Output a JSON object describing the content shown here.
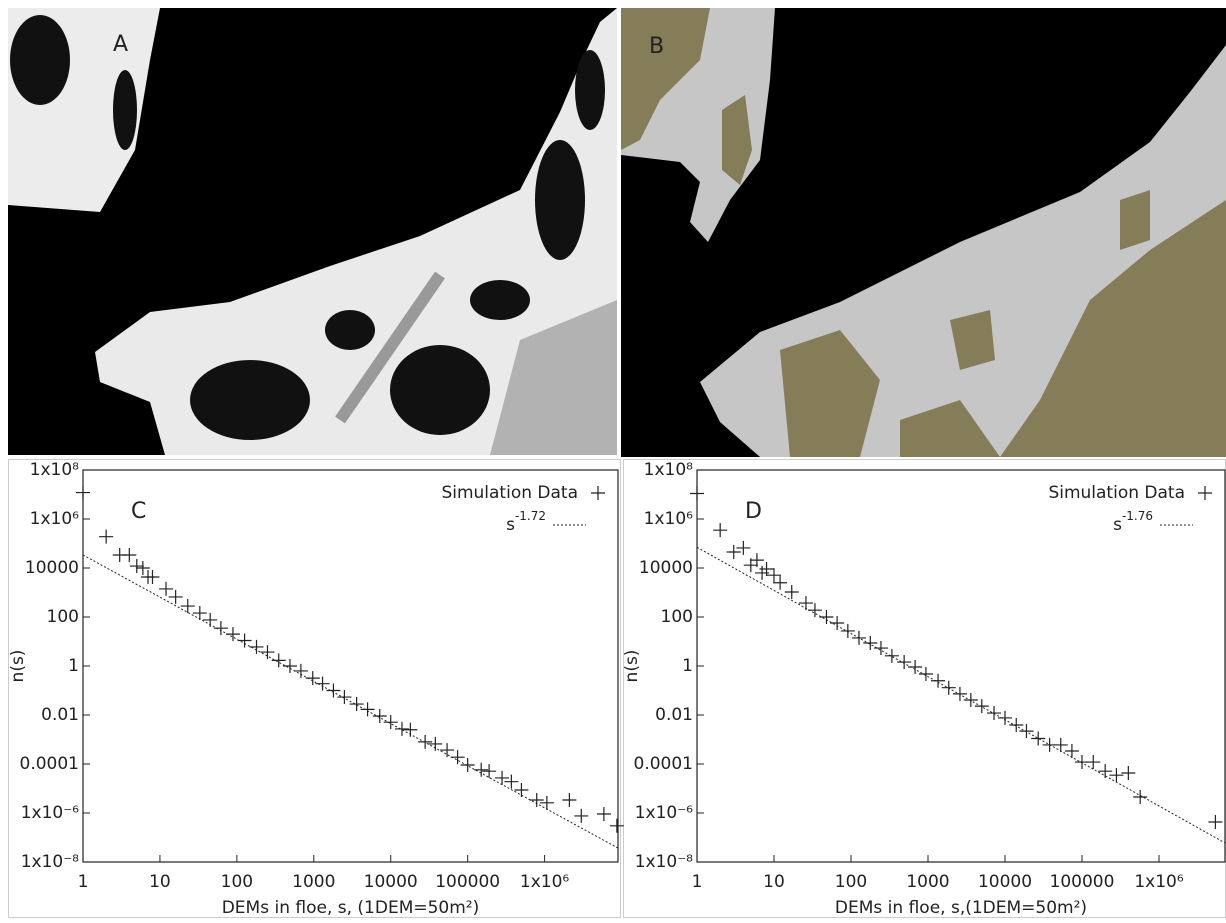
{
  "images": [
    {
      "label": "A"
    },
    {
      "label": "B"
    }
  ],
  "chart_data": [
    {
      "type": "scatter",
      "label": "C",
      "xlog": true,
      "ylog": true,
      "xlabel": "DEMs in floe, s, (1DEM=50m²)",
      "ylabel": "n(s)",
      "xlim": [
        1,
        9000000
      ],
      "ylim": [
        1e-08,
        100000000
      ],
      "xticks": [
        1,
        10,
        100,
        1000,
        10000,
        100000,
        {
          "value": 1000000,
          "label": "1x10⁶"
        }
      ],
      "yticks": [
        {
          "value": 1e-08,
          "label": "1x10⁻⁸"
        },
        {
          "value": 1e-06,
          "label": "1x10⁻⁶"
        },
        0.0001,
        0.01,
        1,
        100,
        10000,
        {
          "value": 1000000,
          "label": "1x10⁶"
        },
        {
          "value": 100000000,
          "label": "1x10⁸"
        }
      ],
      "legend": "upper right",
      "series": [
        {
          "name": "Simulation Data",
          "mode": "markers",
          "color": "#222",
          "x": [
            1,
            2,
            3,
            4,
            5,
            6,
            7,
            8,
            12,
            16,
            23,
            33,
            45,
            62,
            89,
            126,
            180,
            250,
            350,
            490,
            680,
            970,
            1300,
            1800,
            2500,
            3600,
            5000,
            7200,
            10000,
            14000,
            18000,
            28000,
            38000,
            54000,
            74000,
            100000,
            150000,
            190000,
            280000,
            370000,
            500000,
            790000,
            1070000,
            2100000,
            3000000,
            5900000,
            8700000
          ],
          "values": [
            12000000,
            190000,
            34000,
            34000,
            12000,
            10000,
            4300,
            4300,
            1400,
            660,
            280,
            145,
            76,
            35,
            20,
            11,
            6,
            3.7,
            1.7,
            1,
            0.63,
            0.32,
            0.19,
            0.1,
            0.054,
            0.028,
            0.017,
            0.0091,
            0.0051,
            0.0027,
            0.0025,
            0.0008,
            0.00066,
            0.00037,
            0.00019,
            9.1e-05,
            5.8e-05,
            5.1e-05,
            2.7e-05,
            1.9e-05,
            8.7e-06,
            3.4e-06,
            2.6e-06,
            3.4e-06,
            7.6e-07,
            9.1e-07,
            3e-07
          ]
        },
        {
          "name": "s",
          "exponent": -1.72,
          "mode": "dotted-line",
          "color": "#222",
          "x": [
            1,
            9000000
          ],
          "values": [
            34000,
            3.7e-08
          ]
        }
      ]
    },
    {
      "type": "scatter",
      "label": "D",
      "xlog": true,
      "ylog": true,
      "xlabel": "DEMs in floe, s,(1DEM=50m²)",
      "ylabel": "n(s)",
      "xlim": [
        1,
        7200000
      ],
      "ylim": [
        1e-08,
        100000000
      ],
      "xticks": [
        1,
        10,
        100,
        1000,
        10000,
        100000,
        {
          "value": 1000000,
          "label": "1x10⁶"
        }
      ],
      "yticks": [
        {
          "value": 1e-08,
          "label": "1x10⁻⁸"
        },
        {
          "value": 1e-06,
          "label": "1x10⁻⁶"
        },
        0.0001,
        0.01,
        1,
        100,
        10000,
        {
          "value": 1000000,
          "label": "1x10⁶"
        },
        {
          "value": 100000000,
          "label": "1x10⁸"
        }
      ],
      "legend": "upper right",
      "series": [
        {
          "name": "Simulation Data",
          "mode": "markers",
          "color": "#222",
          "x": [
            1,
            2,
            3,
            4,
            5,
            6,
            7,
            8,
            10,
            12,
            17,
            26,
            34,
            48,
            66,
            91,
            127,
            178,
            245,
            340,
            490,
            680,
            940,
            1350,
            1860,
            2600,
            3600,
            5000,
            7200,
            10000,
            14000,
            19000,
            27000,
            38000,
            53000,
            74000,
            100000,
            140000,
            200000,
            280000,
            400000,
            570000,
            5400000
          ],
          "values": [
            11000000,
            350000,
            45000,
            66000,
            13000,
            21000,
            6300,
            9100,
            5100,
            2500,
            1050,
            370,
            190,
            100,
            57,
            27,
            14,
            8.7,
            5.4,
            2.6,
            1.45,
            0.91,
            0.47,
            0.25,
            0.13,
            0.073,
            0.041,
            0.023,
            0.012,
            0.0076,
            0.0039,
            0.0022,
            0.0011,
            0.0006,
            0.0006,
            0.00034,
            0.00012,
            0.00012,
            5.1e-05,
            3.5e-05,
            4.3e-05,
            4.5e-06,
            4.3e-07
          ]
        },
        {
          "name": "s",
          "exponent": -1.76,
          "mode": "dotted-line",
          "color": "#222",
          "x": [
            1,
            7200000
          ],
          "values": [
            70000,
            6e-08
          ]
        }
      ]
    }
  ]
}
